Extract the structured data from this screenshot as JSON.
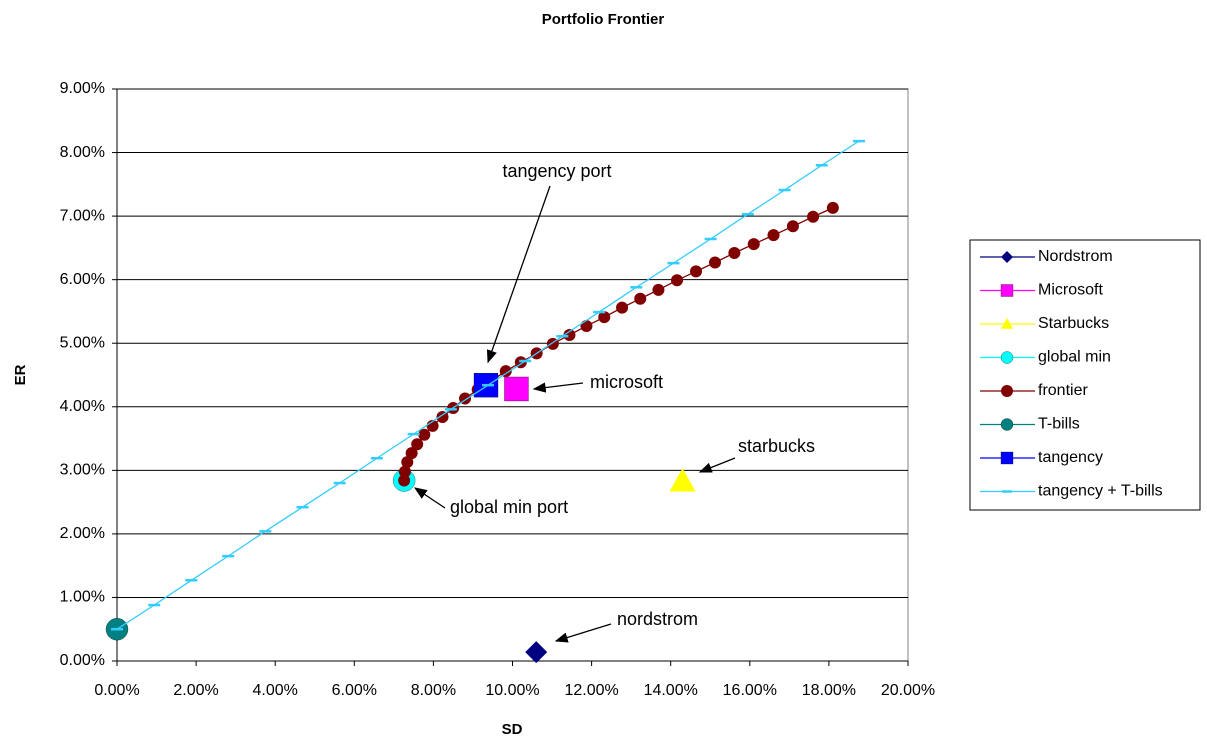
{
  "chart_data": {
    "type": "scatter",
    "title": "Portfolio Frontier",
    "x_label": "SD",
    "y_label": "ER",
    "xlim": [
      0,
      20
    ],
    "ylim": [
      0,
      9
    ],
    "grid": true,
    "xticks": [
      {
        "value": 0,
        "label": "0.00%"
      },
      {
        "value": 2,
        "label": "2.00%"
      },
      {
        "value": 4,
        "label": "4.00%"
      },
      {
        "value": 6,
        "label": "6.00%"
      },
      {
        "value": 8,
        "label": "8.00%"
      },
      {
        "value": 10,
        "label": "10.00%"
      },
      {
        "value": 12,
        "label": "12.00%"
      },
      {
        "value": 14,
        "label": "14.00%"
      },
      {
        "value": 16,
        "label": "16.00%"
      },
      {
        "value": 18,
        "label": "18.00%"
      },
      {
        "value": 20,
        "label": "20.00%"
      }
    ],
    "yticks": [
      {
        "value": 0,
        "label": "0.00%"
      },
      {
        "value": 1,
        "label": "1.00%"
      },
      {
        "value": 2,
        "label": "2.00%"
      },
      {
        "value": 3,
        "label": "3.00%"
      },
      {
        "value": 4,
        "label": "4.00%"
      },
      {
        "value": 5,
        "label": "5.00%"
      },
      {
        "value": 6,
        "label": "6.00%"
      },
      {
        "value": 7,
        "label": "7.00%"
      },
      {
        "value": 8,
        "label": "8.00%"
      },
      {
        "value": 9,
        "label": "9.00%"
      }
    ],
    "legend": "right",
    "series": [
      {
        "name": "Nordstrom",
        "color": "#000080",
        "marker": "diamond",
        "x": [
          10.6
        ],
        "y": [
          0.14
        ]
      },
      {
        "name": "Microsoft",
        "color": "#ff00ff",
        "marker": "square",
        "x": [
          10.1
        ],
        "y": [
          4.28
        ]
      },
      {
        "name": "Starbucks",
        "color": "#ffff00",
        "marker": "triangle",
        "x": [
          14.3
        ],
        "y": [
          2.83
        ]
      },
      {
        "name": "global min",
        "color": "#00ffff",
        "marker": "circle",
        "x": [
          7.26
        ],
        "y": [
          2.84
        ]
      },
      {
        "name": "frontier",
        "color": "#800000",
        "marker": "dot",
        "line": true,
        "x": [
          7.26,
          7.28,
          7.34,
          7.45,
          7.59,
          7.77,
          7.98,
          8.23,
          8.5,
          8.8,
          9.12,
          9.47,
          9.83,
          10.21,
          10.61,
          11.02,
          11.44,
          11.87,
          12.32,
          12.77,
          13.23,
          13.69,
          14.16,
          14.64,
          15.12,
          15.61,
          16.1,
          16.6,
          17.09,
          17.6,
          18.1
        ],
        "y": [
          2.84,
          2.98,
          3.13,
          3.27,
          3.41,
          3.56,
          3.7,
          3.84,
          3.98,
          4.13,
          4.27,
          4.41,
          4.56,
          4.7,
          4.84,
          4.99,
          5.13,
          5.27,
          5.41,
          5.56,
          5.7,
          5.84,
          5.99,
          6.13,
          6.27,
          6.42,
          6.56,
          6.7,
          6.84,
          6.99,
          7.13
        ]
      },
      {
        "name": "T-bills",
        "color": "#008080",
        "marker": "circle",
        "x": [
          0
        ],
        "y": [
          0.5
        ]
      },
      {
        "name": "tangency",
        "color": "#0000ff",
        "marker": "square",
        "x": [
          9.33
        ],
        "y": [
          4.34
        ]
      },
      {
        "name": "tangency + T-bills",
        "color": "#33ccff",
        "marker": "dash",
        "line": true,
        "x": [
          0,
          0.94,
          1.88,
          2.81,
          3.75,
          4.69,
          5.63,
          6.57,
          7.5,
          8.44,
          9.38,
          10.32,
          11.26,
          12.19,
          13.13,
          14.07,
          15.01,
          15.95,
          16.88,
          17.82,
          18.76
        ],
        "y": [
          0.5,
          0.88,
          1.27,
          1.65,
          2.04,
          2.42,
          2.8,
          3.19,
          3.57,
          3.96,
          4.34,
          4.72,
          5.11,
          5.49,
          5.88,
          6.26,
          6.64,
          7.03,
          7.41,
          7.8,
          8.18
        ]
      }
    ],
    "annotations": [
      "tangency port",
      "microsoft",
      "starbucks",
      "global min port",
      "nordstrom"
    ]
  }
}
